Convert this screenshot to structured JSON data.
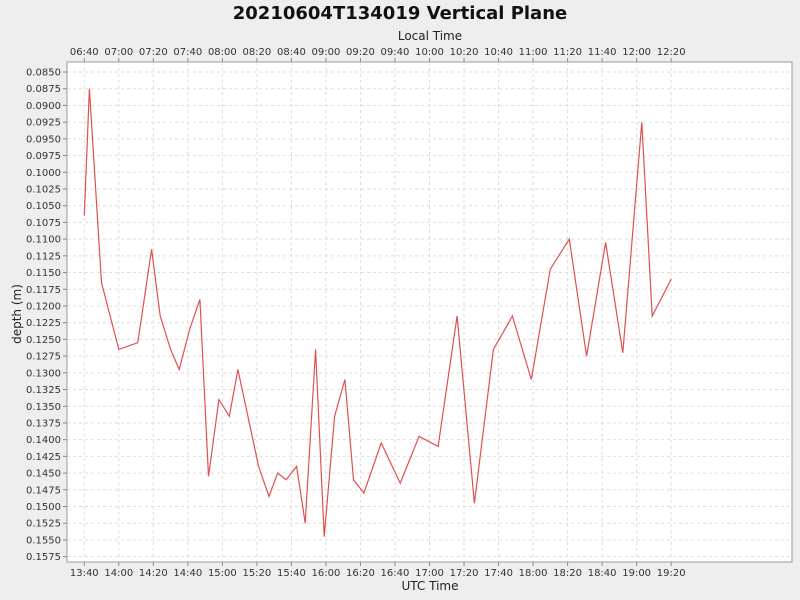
{
  "chart_data": {
    "type": "line",
    "title": "20210604T134019 Vertical Plane",
    "xlabel": "UTC Time",
    "x2label": "Local Time",
    "ylabel": "depth (m)",
    "y_inverted": true,
    "ylim": [
      0.0835,
      0.1583
    ],
    "xlim": [
      "13:30",
      "20:30"
    ],
    "grid": true,
    "line_color": "#e05050",
    "x_ticks": [
      "13:40",
      "14:00",
      "14:20",
      "14:40",
      "15:00",
      "15:20",
      "15:40",
      "16:00",
      "16:20",
      "16:40",
      "17:00",
      "17:20",
      "17:40",
      "18:00",
      "18:20",
      "18:40",
      "19:00",
      "19:20"
    ],
    "local_ticks": [
      "06:40",
      "07:00",
      "07:20",
      "07:40",
      "08:00",
      "08:20",
      "08:40",
      "09:00",
      "09:20",
      "09:40",
      "10:00",
      "10:20",
      "10:40",
      "11:00",
      "11:20",
      "11:40",
      "12:00",
      "12:20"
    ],
    "y_ticks": [
      "0.0850",
      "0.0875",
      "0.0900",
      "0.0925",
      "0.0950",
      "0.0975",
      "0.1000",
      "0.1025",
      "0.1050",
      "0.1075",
      "0.1100",
      "0.1125",
      "0.1150",
      "0.1175",
      "0.1200",
      "0.1225",
      "0.1250",
      "0.1275",
      "0.1300",
      "0.1325",
      "0.1350",
      "0.1375",
      "0.1400",
      "0.1425",
      "0.1450",
      "0.1475",
      "0.1500",
      "0.1525",
      "0.1550",
      "0.1575"
    ],
    "series": [
      {
        "x": [
          "13:40",
          "13:43",
          "13:50",
          "14:00",
          "14:11",
          "14:19",
          "14:24",
          "14:30",
          "14:35",
          "14:41",
          "14:47",
          "14:52",
          "14:58",
          "15:04",
          "15:09",
          "15:21",
          "15:27",
          "15:32",
          "15:37",
          "15:43",
          "15:48",
          "15:54",
          "15:59",
          "16:05",
          "16:11",
          "16:16",
          "16:22",
          "16:32",
          "16:43",
          "16:54",
          "17:05",
          "17:16",
          "17:26",
          "17:37",
          "17:48",
          "17:59",
          "18:10",
          "18:21",
          "18:31",
          "18:42",
          "18:52",
          "19:03",
          "19:09",
          "19:20"
        ],
        "y": [
          0.1065,
          0.0875,
          0.1165,
          0.1265,
          0.1255,
          0.1115,
          0.1215,
          0.1265,
          0.1295,
          0.1235,
          0.119,
          0.1455,
          0.134,
          0.1365,
          0.1295,
          0.144,
          0.1485,
          0.145,
          0.146,
          0.144,
          0.1525,
          0.1265,
          0.1545,
          0.1365,
          0.131,
          0.146,
          0.148,
          0.1405,
          0.1465,
          0.1395,
          0.141,
          0.1215,
          0.1495,
          0.1265,
          0.1215,
          0.131,
          0.1145,
          0.11,
          0.1275,
          0.1105,
          0.127,
          0.0925,
          0.1215,
          0.116
        ]
      }
    ]
  }
}
